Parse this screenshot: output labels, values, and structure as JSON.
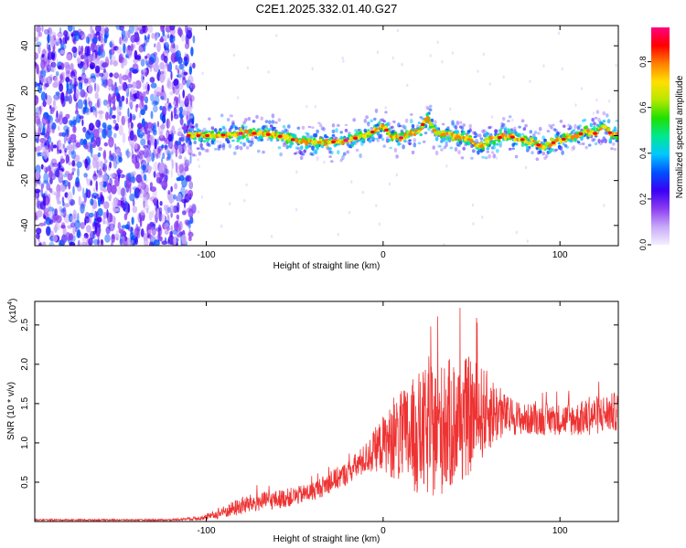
{
  "figure": {
    "title": "C2E1.2025.332.01.40.G27"
  },
  "chart_data": [
    {
      "type": "heatmap",
      "xlabel": "Height of straight line (km)",
      "ylabel": "Frequency (Hz)",
      "xlim": [
        -197,
        133
      ],
      "ylim": [
        -49,
        49
      ],
      "xticks": [
        -100,
        0,
        100
      ],
      "yticks": [
        -40,
        -20,
        0,
        20,
        40
      ],
      "grid": false,
      "colorbar": {
        "label": "Normalized spectral amplitude",
        "range": [
          0.0,
          0.95
        ],
        "ticks": [
          "0.0",
          "0.2",
          "0.4",
          "0.6",
          "0.8"
        ],
        "colormap": [
          "#f4f0ff",
          "#c8a8f8",
          "#8a3cf0",
          "#3a00f5",
          "#0050ff",
          "#00c8ff",
          "#00e890",
          "#20e000",
          "#b8e800",
          "#ffe000",
          "#ff8000",
          "#ff0000",
          "#ff0080"
        ]
      },
      "noise_region_x": [
        -197,
        -110
      ],
      "ridge_x": [
        -110,
        -95,
        -80,
        -70,
        -60,
        -50,
        -40,
        -30,
        -20,
        -10,
        -5,
        0,
        5,
        10,
        20,
        25,
        30,
        40,
        50,
        55,
        60,
        70,
        80,
        85,
        90,
        100,
        110,
        115,
        120,
        125,
        130,
        133
      ],
      "ridge_freq": [
        0,
        0,
        1,
        1,
        0,
        -2,
        -3,
        -3,
        -2,
        0,
        2,
        4,
        0,
        -1,
        2,
        8,
        1,
        0,
        -2,
        -5,
        -2,
        0,
        -2,
        -3,
        -5,
        -2,
        0,
        2,
        1,
        4,
        0,
        1
      ]
    },
    {
      "type": "line",
      "xlabel": "Height of straight line (km)",
      "ylabel": "SNR (10 * v/v)",
      "yscale_label": "(x10",
      "yscale_exp": "4",
      "xlim": [
        -197,
        133
      ],
      "ylim": [
        0,
        2.8
      ],
      "xticks": [
        -100,
        0,
        100
      ],
      "yticks": [
        "0.5",
        "1.0",
        "1.5",
        "2.0",
        "2.5"
      ],
      "grid": false,
      "series": [
        {
          "color": "#ee3333",
          "envelope_x": [
            -197,
            -120,
            -100,
            -90,
            -80,
            -70,
            -60,
            -50,
            -40,
            -30,
            -20,
            -10,
            0,
            10,
            20,
            30,
            40,
            50,
            60,
            70,
            80,
            90,
            100,
            110,
            120,
            133
          ],
          "envelope_mean": [
            0.02,
            0.02,
            0.05,
            0.12,
            0.2,
            0.25,
            0.28,
            0.32,
            0.38,
            0.5,
            0.62,
            0.8,
            1.0,
            1.05,
            1.1,
            1.15,
            1.25,
            1.35,
            1.4,
            1.35,
            1.3,
            1.3,
            1.3,
            1.3,
            1.35,
            1.4
          ],
          "envelope_spread": [
            0.01,
            0.01,
            0.03,
            0.08,
            0.12,
            0.12,
            0.12,
            0.12,
            0.12,
            0.14,
            0.15,
            0.2,
            0.35,
            0.6,
            0.8,
            0.85,
            0.85,
            0.75,
            0.5,
            0.25,
            0.2,
            0.2,
            0.2,
            0.22,
            0.25,
            0.25
          ]
        }
      ]
    }
  ]
}
